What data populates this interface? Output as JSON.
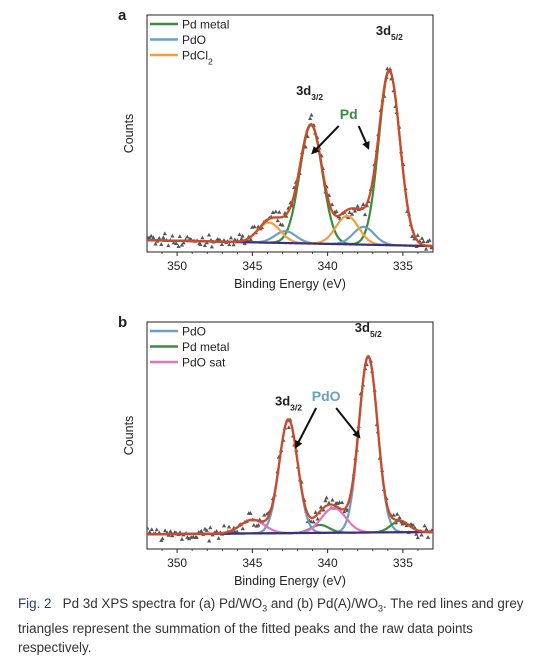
{
  "caption": {
    "label": "Fig. 2",
    "text_1": "Pd 3d XPS spectra for (a) Pd/WO",
    "sub_1": "3",
    "text_2": " and (b) Pd(A)/WO",
    "sub_2": "3",
    "text_3": ". The red lines and grey triangles represent the summation of the fitted peaks and the raw data points respectively."
  },
  "colors": {
    "sum": "#cc4a2a",
    "raw": "#555555",
    "pd_metal": "#3a8c3e",
    "pdo": "#6a9fc7",
    "pdcl2": "#f0a040",
    "pdo_sat": "#e273bd",
    "background": "#3c2f7e",
    "pd_text": "#3a8c3e",
    "pdo_text": "#6a9fc7"
  },
  "chart_data": [
    {
      "panel": "a",
      "type": "line",
      "xlabel": "Binding Energy (eV)",
      "ylabel": "Counts",
      "xlim": [
        352,
        333
      ],
      "x_reversed": true,
      "xticks": [
        350,
        345,
        340,
        335
      ],
      "yticks": false,
      "legend": {
        "position": "top-left",
        "entries": [
          {
            "key": "pd_metal",
            "label": "Pd metal"
          },
          {
            "key": "pdo",
            "label": "PdO"
          },
          {
            "key": "pdcl2",
            "label": "PdCl",
            "sub": "2"
          }
        ]
      },
      "annotations": [
        {
          "key": "peak_3d32",
          "main": "3d",
          "sub": "3/2",
          "x": 341.2
        },
        {
          "key": "peak_3d52",
          "main": "3d",
          "sub": "5/2",
          "x": 335.9
        },
        {
          "key": "pd",
          "text": "Pd",
          "color_key": "pd_text",
          "x": 338.6
        }
      ],
      "background": {
        "start": 0.05,
        "end": 0.0
      },
      "components": [
        {
          "key": "pd_metal",
          "peaks": [
            {
              "center": 341.1,
              "amp": 1.0,
              "width": 0.75
            },
            {
              "center": 335.9,
              "amp": 1.47,
              "width": 0.7
            }
          ]
        },
        {
          "key": "pdo",
          "peaks": [
            {
              "center": 342.8,
              "amp": 0.1,
              "width": 0.7
            },
            {
              "center": 337.6,
              "amp": 0.15,
              "width": 0.7
            }
          ]
        },
        {
          "key": "pdcl2",
          "peaks": [
            {
              "center": 343.9,
              "amp": 0.17,
              "width": 0.75
            },
            {
              "center": 338.7,
              "amp": 0.24,
              "width": 0.75
            }
          ]
        }
      ],
      "ylim": [
        -0.05,
        1.95
      ]
    },
    {
      "panel": "b",
      "type": "line",
      "xlabel": "Binding Energy (eV)",
      "ylabel": "Counts",
      "xlim": [
        352,
        333
      ],
      "x_reversed": true,
      "xticks": [
        350,
        345,
        340,
        335
      ],
      "yticks": false,
      "legend": {
        "position": "top-left",
        "entries": [
          {
            "key": "pdo",
            "label": "PdO"
          },
          {
            "key": "pd_metal",
            "label": "Pd metal"
          },
          {
            "key": "pdo_sat",
            "label": "PdO sat"
          }
        ]
      },
      "annotations": [
        {
          "key": "peak_3d32",
          "main": "3d",
          "sub": "3/2",
          "x": 342.6
        },
        {
          "key": "peak_3d52",
          "main": "3d",
          "sub": "5/2",
          "x": 337.3
        },
        {
          "key": "pdo",
          "text": "PdO",
          "color_key": "pdo_text",
          "x": 340.1
        }
      ],
      "background": {
        "start": 0.08,
        "end": 0.1
      },
      "components": [
        {
          "key": "pdo",
          "peaks": [
            {
              "center": 342.6,
              "amp": 1.0,
              "width": 0.62
            },
            {
              "center": 337.3,
              "amp": 1.55,
              "width": 0.62
            }
          ]
        },
        {
          "key": "pd_metal",
          "peaks": [
            {
              "center": 340.5,
              "amp": 0.07,
              "width": 0.6
            },
            {
              "center": 335.2,
              "amp": 0.1,
              "width": 0.6
            }
          ]
        },
        {
          "key": "pdo_sat",
          "peaks": [
            {
              "center": 345.0,
              "amp": 0.12,
              "width": 0.8
            },
            {
              "center": 339.6,
              "amp": 0.22,
              "width": 0.8
            }
          ]
        }
      ],
      "ylim": [
        -0.05,
        1.95
      ]
    }
  ]
}
